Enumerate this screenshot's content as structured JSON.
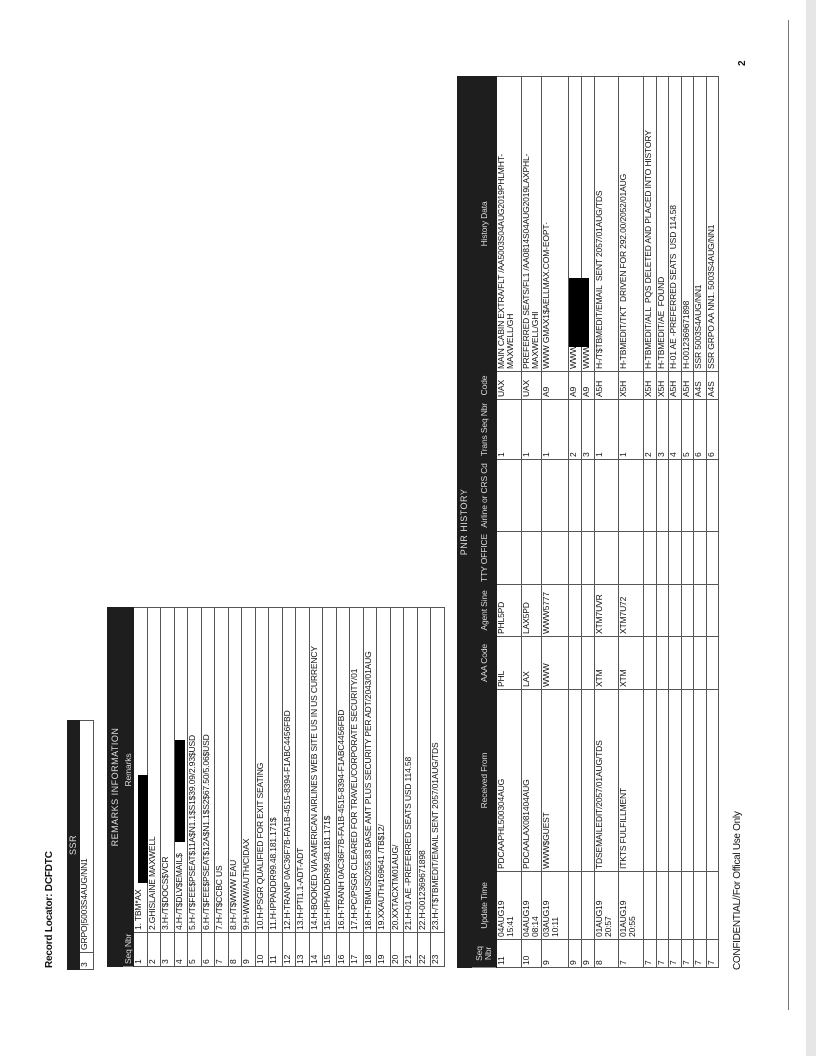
{
  "record_locator": "Record Locator: DCFDTC",
  "ssr": {
    "title": "SSR",
    "rows": [
      {
        "seq": "3",
        "text": "GRPO|5003S4AUG/NN1"
      }
    ]
  },
  "remarks": {
    "title": "REMARKS INFORMATION",
    "headers": {
      "seq": "Seq Nbr",
      "remarks": "Remarks"
    },
    "rows": [
      {
        "seq": "1",
        "text": "1. TBM*AX",
        "redacted": true
      },
      {
        "seq": "2",
        "text": "2.GHISLAINE MAXWELL"
      },
      {
        "seq": "3",
        "text": "3.H-/T$DOCS$VCR"
      },
      {
        "seq": "4",
        "text": "4.H-/T$DLV$EMAIL$",
        "redacted": true
      },
      {
        "seq": "5",
        "text": "5.H-/T$FEE$PSEAT$11A$N1.1$S1$39.09/2.93$USD"
      },
      {
        "seq": "6",
        "text": "6.H-/T$FEE$PSEAT$12A$N1.1$S2$67.50/5.06$USD"
      },
      {
        "seq": "7",
        "text": "7.H-/T$CCBC US"
      },
      {
        "seq": "8",
        "text": "8.H-/T$WWW EAU"
      },
      {
        "seq": "9",
        "text": "9.H-WWW/AUTH/CIDAX"
      },
      {
        "seq": "10",
        "text": "10.H-PSGR QUALIFIED FOR EXIT SEATING"
      },
      {
        "seq": "11",
        "text": "11.H-IPPADDR99.48.181.171$"
      },
      {
        "seq": "12",
        "text": "12.H-TRANP 0AC36F7B-FA1B-4515-8394-F1ABC4456FBD"
      },
      {
        "seq": "13",
        "text": "13.H-PTI1.1-ADT-ADT"
      },
      {
        "seq": "14",
        "text": "14.H-BOOKED VIA AMERICAN AIRLINES WEB SITE US IN US CURRENCY"
      },
      {
        "seq": "15",
        "text": "15.H-IPHADDR99.48.181.171$"
      },
      {
        "seq": "16",
        "text": "16.H-TRANH 0AC36F7B-FA1B-4515-8394-F1ABC4456FBD"
      },
      {
        "seq": "17",
        "text": "17.H-PC/PSGR CLEARED FOR TRAVEL/CORPORATE  SECURITY/01"
      },
      {
        "seq": "18",
        "text": "18.H-TBMUSD255.83  BASE AMT  PLUS SECURITY PER ADT/2043/01AUG"
      },
      {
        "seq": "19",
        "text": "19.XXAUTH/169641  /TB$12/"
      },
      {
        "seq": "20",
        "text": "20.XXTACXTM01AUG/"
      },
      {
        "seq": "21",
        "text": "21.H-01 AE -PREFERRED SEATS USD 114.58"
      },
      {
        "seq": "22",
        "text": "22.H-0012369671898"
      },
      {
        "seq": "23",
        "text": "23.H-/T$TBMEDIT/EMAIL  SENT 2057/01AUG/TDS"
      }
    ]
  },
  "pnr_history": {
    "title": "PNR HISTORY",
    "headers": [
      "Seq Nbr",
      "Update Time",
      "Received From",
      "AAA Code",
      "Agent Sine",
      "TTY OFFICE",
      "Airline or CRS Cd",
      "Trans Seq Nbr",
      "Code",
      "History Data"
    ],
    "rows": [
      [
        "11",
        "04AUG19\n15:41",
        "PDCAAPHL500304AUG",
        "PHL",
        "PHL5PD",
        "",
        "",
        "1",
        "UAX",
        "MAIN CABIN EXTRA/FLT /AA5003S04AUG2019PHLMHT-\nMAXWELL/GH"
      ],
      [
        "10",
        "04AUG19\n08:14",
        "PDCAALAX081404AUG",
        "LAX",
        "LAX5PD",
        "",
        "",
        "1",
        "UAX",
        "PREFERRED SEATS/FL1 /AA0814S04AUG2019LAXPHL-\nMAXWELL/GHI"
      ],
      [
        "9",
        "03AUG19\n10:11",
        "WWW$GUEST",
        "WWW",
        "WWW5777",
        "",
        "",
        "1",
        "A9",
        "WWW GMAX1$AELLMAX.COM-EOPT·"
      ],
      [
        "9",
        "",
        "",
        "",
        "",
        "",
        "",
        "2",
        "A9",
        "WWW                    POPT"
      ],
      [
        "9",
        "",
        "",
        "",
        "",
        "",
        "",
        "3",
        "A9",
        "WWW"
      ],
      [
        "8",
        "01AUG19\n20:57",
        "TDSEMAILEDIT/2057/01AUG/TDS",
        "XTM",
        "XTM7UVR",
        "",
        "",
        "1",
        "A5H",
        "H-/T$TBMEDIT/EMAIL  SENT 2057/01AUG/TDS"
      ],
      [
        "7",
        "01AUG19\n20:55",
        "ITKTS FULFILLMENT",
        "XTM",
        "XTM7U72",
        "",
        "",
        "1",
        "X5H",
        "H-TBMEDIT/TKT  DRIVEN FOR 292.00/2052/01AUG"
      ],
      [
        "7",
        "",
        "",
        "",
        "",
        "",
        "",
        "2",
        "X5H",
        "H-TBMEDIT/ALL  PQS DELETED AND PLACED INTO HISTORY"
      ],
      [
        "7",
        "",
        "",
        "",
        "",
        "",
        "",
        "3",
        "X5H",
        "H-TBMEDIT/AE  FOUND"
      ],
      [
        "7",
        "",
        "",
        "",
        "",
        "",
        "",
        "4",
        "A5H",
        "H-01 AE -PREFERRED SEATS  USD 114.58"
      ],
      [
        "7",
        "",
        "",
        "",
        "",
        "",
        "",
        "5",
        "A5H",
        "H-0012369671898"
      ],
      [
        "7",
        "",
        "",
        "",
        "",
        "",
        "",
        "6",
        "A4S",
        "SSR 5003S4AUG/NN1"
      ],
      [
        "7",
        "",
        "",
        "",
        "",
        "",
        "",
        "6",
        "A4S",
        "SSR GRPO AA NN1. 5003S4AUG/NN1"
      ]
    ]
  },
  "footer": "CONFIDENTIAL//For Offical Use Only",
  "page_number": "2",
  "colors": {
    "header_bg": "#1e1e1e",
    "redaction": "#000000"
  }
}
